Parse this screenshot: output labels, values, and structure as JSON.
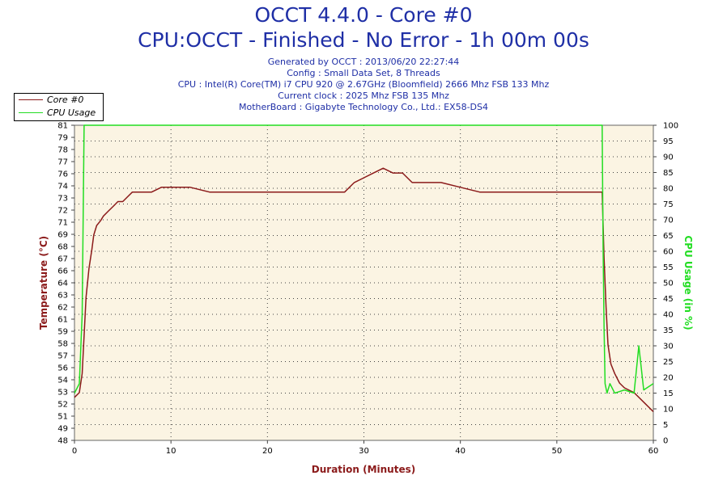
{
  "header": {
    "title": "OCCT 4.4.0 - Core #0",
    "subtitle": "CPU:OCCT - Finished - No Error - 1h 00m 00s",
    "info_lines": [
      "Generated by OCCT : 2013/06/20 22:27:44",
      "Config : Small Data Set, 8 Threads",
      "CPU : Intel(R) Core(TM) i7 CPU 920 @ 2.67GHz (Bloomfield) 2666 Mhz FSB 133 Mhz",
      "Current clock : 2025 Mhz FSB 135 Mhz",
      "MotherBoard : Gigabyte Technology Co., Ltd.: EX58-DS4"
    ]
  },
  "legend": {
    "items": [
      {
        "label": "Core #0",
        "color": "#8b1a1a"
      },
      {
        "label": "CPU Usage",
        "color": "#22dd22"
      }
    ]
  },
  "chart_data": {
    "type": "line",
    "xlabel": "Duration (Minutes)",
    "ylabel": "Temperature (°C)",
    "y2label": "CPU Usage (in %)",
    "xlim": [
      0,
      60
    ],
    "ylim": [
      48,
      81
    ],
    "y2lim": [
      0,
      100
    ],
    "xticks": [
      "0",
      "10",
      "20",
      "30",
      "40",
      "50",
      "60"
    ],
    "yticks": [
      "48",
      "49",
      "51",
      "52",
      "53",
      "54",
      "56",
      "57",
      "58",
      "59",
      "61",
      "62",
      "63",
      "64",
      "66",
      "67",
      "68",
      "69",
      "71",
      "72",
      "73",
      "74",
      "76",
      "77",
      "78",
      "79",
      "81"
    ],
    "y2ticks": [
      "0",
      "5",
      "10",
      "15",
      "20",
      "25",
      "30",
      "35",
      "40",
      "45",
      "50",
      "55",
      "60",
      "65",
      "70",
      "75",
      "80",
      "85",
      "90",
      "95",
      "100"
    ],
    "grid": true,
    "background": "#fbf4e3",
    "series": [
      {
        "name": "Core #0",
        "axis": "left",
        "color": "#8b1a1a",
        "x": [
          0,
          0.5,
          0.8,
          1.0,
          1.2,
          1.5,
          1.8,
          2.0,
          2.3,
          2.7,
          3.0,
          3.5,
          4.0,
          4.5,
          5.0,
          5.5,
          6.0,
          6.5,
          7.0,
          8.0,
          9.0,
          10.0,
          11.0,
          12.0,
          14.0,
          16.0,
          18.0,
          20.0,
          22.0,
          25.0,
          28.0,
          29.0,
          30.0,
          31.0,
          32.0,
          33.0,
          34.0,
          35.0,
          36.0,
          38.0,
          40.0,
          42.0,
          45.0,
          48.0,
          50.0,
          52.0,
          54.0,
          54.7,
          54.9,
          55.1,
          55.3,
          55.6,
          56.0,
          56.5,
          57.0,
          58.0,
          59.0,
          60.0
        ],
        "y": [
          52.5,
          53,
          55,
          59,
          63,
          66,
          68,
          69.5,
          70.5,
          71,
          71.5,
          72,
          72.5,
          73,
          73,
          73.5,
          74,
          74,
          74,
          74,
          74.5,
          74.5,
          74.5,
          74.5,
          74,
          74,
          74,
          74,
          74,
          74,
          74,
          75,
          75.5,
          76,
          76.5,
          76,
          76,
          75,
          75,
          75,
          74.5,
          74,
          74,
          74,
          74,
          74,
          74,
          74,
          67,
          62,
          58,
          56,
          55,
          54,
          53.5,
          53,
          52,
          51
        ]
      },
      {
        "name": "CPU Usage",
        "axis": "right",
        "color": "#22dd22",
        "x": [
          0,
          0.5,
          0.8,
          0.9,
          1.0,
          1.1,
          33.9,
          34.0,
          34.1,
          34.3,
          54.7,
          54.8,
          54.9,
          55.0,
          55.2,
          55.5,
          56.0,
          57.0,
          58.0,
          58.5,
          59.0,
          60.0
        ],
        "y": [
          15,
          18,
          40,
          70,
          100,
          100,
          100,
          100,
          100,
          100,
          100,
          60,
          35,
          18,
          15,
          18,
          15,
          16,
          15,
          30,
          16,
          18
        ]
      }
    ]
  }
}
